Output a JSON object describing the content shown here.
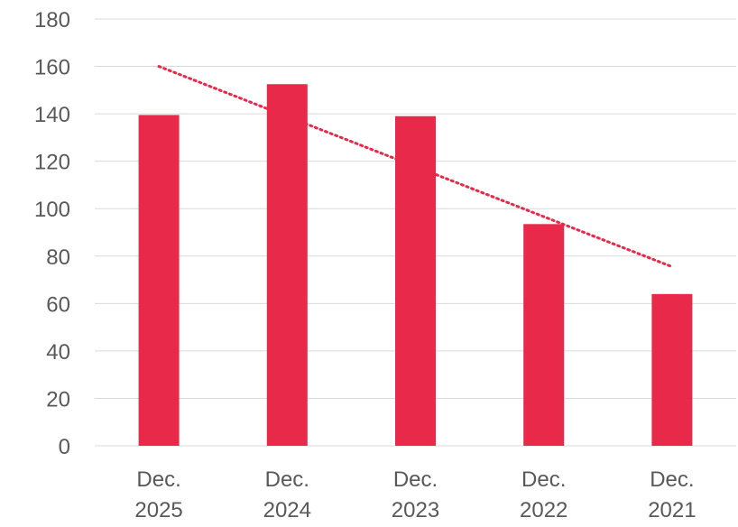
{
  "chart_data": {
    "type": "bar",
    "title": "",
    "xlabel": "",
    "ylabel": "",
    "categories": [
      [
        "Dec.",
        "2025"
      ],
      [
        "Dec.",
        "2024"
      ],
      [
        "Dec.",
        "2023"
      ],
      [
        "Dec.",
        "2022"
      ],
      [
        "Dec.",
        "2021"
      ]
    ],
    "values": [
      139.5,
      152.5,
      139,
      93.5,
      64
    ],
    "ylim": [
      0,
      180
    ],
    "yticks": [
      0,
      20,
      40,
      60,
      80,
      100,
      120,
      140,
      160,
      180
    ],
    "grid": true,
    "legend": "none",
    "bar_color": "#e8294a",
    "trendline": {
      "type": "linear",
      "style": "dotted",
      "color": "#e8294a",
      "start": 160,
      "end": 75.5
    }
  }
}
